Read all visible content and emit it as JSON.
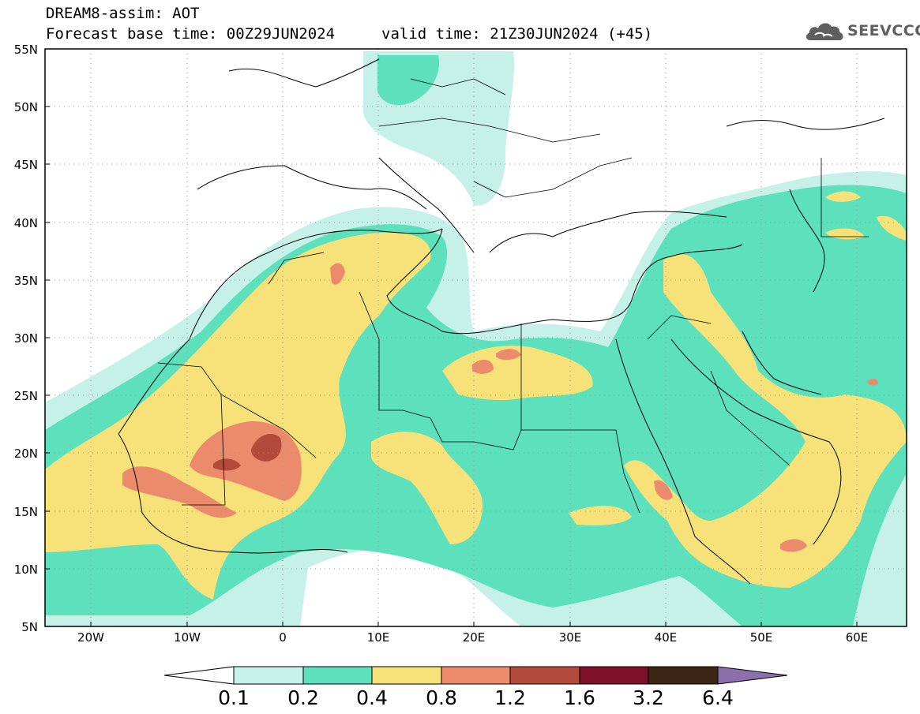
{
  "header": {
    "title": "DREAM8-assim: AOT",
    "base_time": "Forecast base time: 00Z29JUN2024",
    "valid_time": "valid time: 21Z30JUN2024 (+45)"
  },
  "logo": {
    "text": "SEEVCCC",
    "icon": "cloud-icon"
  },
  "map": {
    "lat_labels": [
      "55N",
      "50N",
      "45N",
      "40N",
      "35N",
      "30N",
      "25N",
      "20N",
      "15N",
      "10N",
      "5N"
    ],
    "lon_labels": [
      "20W",
      "10W",
      "0",
      "10E",
      "20E",
      "30E",
      "40E",
      "50E",
      "60E"
    ],
    "lat_range": [
      5,
      55
    ],
    "lon_range": [
      -25,
      65
    ],
    "gridlines": true
  },
  "colorbar": {
    "levels": [
      "0.1",
      "0.2",
      "0.4",
      "0.8",
      "1.2",
      "1.6",
      "3.2",
      "6.4"
    ],
    "colors": [
      "#ffffff",
      "#c5f1e8",
      "#5de0bc",
      "#f7e27a",
      "#ec8b6c",
      "#b34b3c",
      "#7d0f2a",
      "#3c2615",
      "#8e6fae"
    ]
  },
  "palette": {
    "c01": "#c5f1e8",
    "c02": "#5de0bc",
    "c04": "#f7e27a",
    "c08": "#ec8b6c",
    "c12": "#b34b3c",
    "c16": "#7d0f2a"
  }
}
